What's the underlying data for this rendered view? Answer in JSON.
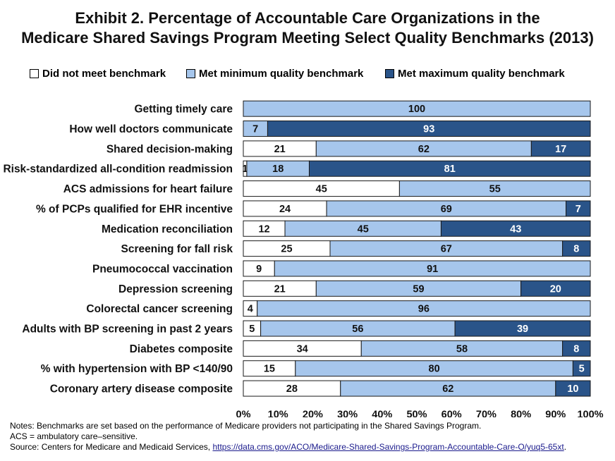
{
  "title_line1": "Exhibit 2. Percentage of Accountable Care Organizations in the",
  "title_line2": "Medicare Shared Savings Program Meeting Select Quality Benchmarks (2013)",
  "legend": [
    {
      "label": "Did not meet benchmark",
      "color": "#ffffff"
    },
    {
      "label": "Met minimum quality benchmark",
      "color": "#a6c6ec"
    },
    {
      "label": "Met maximum quality benchmark",
      "color": "#2a5489"
    }
  ],
  "chart_data": {
    "type": "bar",
    "orientation": "horizontal",
    "stacked": true,
    "categories": [
      "Getting timely care",
      "How well doctors communicate",
      "Shared decision-making",
      "Risk-standardized all-condition readmission",
      "ACS admissions for heart failure",
      "% of PCPs qualified for EHR incentive",
      "Medication reconciliation",
      "Screening for fall risk",
      "Pneumococcal vaccination",
      "Depression screening",
      "Colorectal cancer screening",
      "Adults with BP screening in past 2 years",
      "Diabetes composite",
      "% with hypertension with BP <140/90",
      "Coronary artery disease composite"
    ],
    "series": [
      {
        "name": "Did not meet benchmark",
        "color": "#ffffff",
        "values": [
          0,
          0,
          21,
          1,
          45,
          24,
          12,
          25,
          9,
          21,
          4,
          5,
          34,
          15,
          28
        ]
      },
      {
        "name": "Met minimum quality benchmark",
        "color": "#a6c6ec",
        "values": [
          100,
          7,
          62,
          18,
          55,
          69,
          45,
          67,
          91,
          59,
          96,
          56,
          58,
          80,
          62
        ]
      },
      {
        "name": "Met maximum quality benchmark",
        "color": "#2a5489",
        "values": [
          0,
          93,
          17,
          81,
          0,
          7,
          43,
          8,
          0,
          20,
          0,
          39,
          8,
          5,
          10
        ]
      }
    ],
    "xlim": [
      0,
      100
    ],
    "xticks": [
      "0%",
      "10%",
      "20%",
      "30%",
      "40%",
      "50%",
      "60%",
      "70%",
      "80%",
      "90%",
      "100%"
    ],
    "xlabel": "",
    "ylabel": "",
    "legend_position": "top"
  },
  "notes": {
    "line1": "Notes: Benchmarks are set based on the performance of Medicare providers not participating in the Shared Savings Program.",
    "line2": "ACS = ambulatory care–sensitive.",
    "source_prefix": "Source: Centers for Medicare and Medicaid Services, ",
    "source_link": "https://data.cms.gov/ACO/Medicare-Shared-Savings-Program-Accountable-Care-O/yuq5-65xt",
    "source_suffix": "."
  }
}
